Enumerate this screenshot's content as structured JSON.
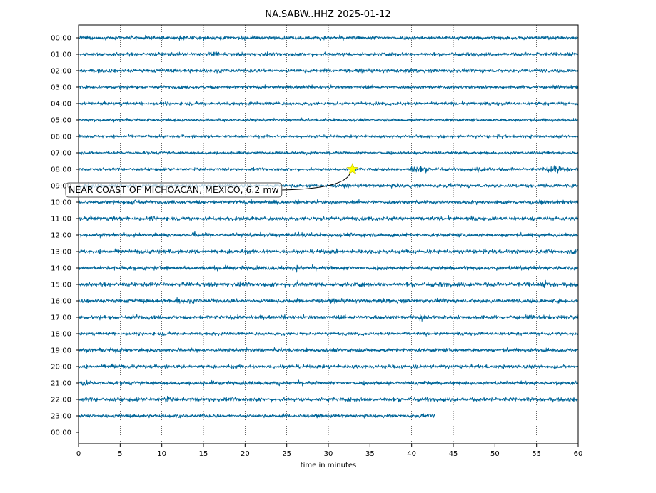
{
  "chart_data": {
    "type": "line",
    "title": "NA.SABW..HHZ 2025-01-12",
    "xlabel": "time in minutes",
    "ylabel": "",
    "xlim": [
      0,
      60
    ],
    "x_ticks": [
      0,
      5,
      10,
      15,
      20,
      25,
      30,
      35,
      40,
      45,
      50,
      55,
      60
    ],
    "grid": "vertical dotted lines at each x tick",
    "trace_color": "#006699",
    "rows": [
      {
        "label": "00:00",
        "end_minute": 60,
        "amplitude": 0.22
      },
      {
        "label": "01:00",
        "end_minute": 60,
        "amplitude": 0.22
      },
      {
        "label": "02:00",
        "end_minute": 60,
        "amplitude": 0.22
      },
      {
        "label": "03:00",
        "end_minute": 60,
        "amplitude": 0.2
      },
      {
        "label": "04:00",
        "end_minute": 60,
        "amplitude": 0.2
      },
      {
        "label": "05:00",
        "end_minute": 60,
        "amplitude": 0.18
      },
      {
        "label": "06:00",
        "end_minute": 60,
        "amplitude": 0.18
      },
      {
        "label": "07:00",
        "end_minute": 60,
        "amplitude": 0.18
      },
      {
        "label": "08:00",
        "end_minute": 60,
        "amplitude": 0.18
      },
      {
        "label": "09:00",
        "end_minute": 60,
        "amplitude": 0.22
      },
      {
        "label": "10:00",
        "end_minute": 60,
        "amplitude": 0.22
      },
      {
        "label": "11:00",
        "end_minute": 60,
        "amplitude": 0.24
      },
      {
        "label": "12:00",
        "end_minute": 60,
        "amplitude": 0.24
      },
      {
        "label": "13:00",
        "end_minute": 60,
        "amplitude": 0.24
      },
      {
        "label": "14:00",
        "end_minute": 60,
        "amplitude": 0.26
      },
      {
        "label": "15:00",
        "end_minute": 60,
        "amplitude": 0.26
      },
      {
        "label": "16:00",
        "end_minute": 60,
        "amplitude": 0.24
      },
      {
        "label": "17:00",
        "end_minute": 60,
        "amplitude": 0.24
      },
      {
        "label": "18:00",
        "end_minute": 60,
        "amplitude": 0.2
      },
      {
        "label": "19:00",
        "end_minute": 60,
        "amplitude": 0.22
      },
      {
        "label": "20:00",
        "end_minute": 60,
        "amplitude": 0.22
      },
      {
        "label": "21:00",
        "end_minute": 60,
        "amplitude": 0.24
      },
      {
        "label": "22:00",
        "end_minute": 60,
        "amplitude": 0.24
      },
      {
        "label": "23:00",
        "end_minute": 42.8,
        "amplitude": 0.2
      },
      {
        "label": "00:00",
        "end_minute": 0,
        "amplitude": 0
      }
    ],
    "bursts": [
      {
        "row": 0,
        "minute": 12.2,
        "width": 0.6,
        "strength": 1.2
      },
      {
        "row": 1,
        "minute": 16,
        "width": 0.8,
        "strength": 0.9
      },
      {
        "row": 3,
        "minute": 27,
        "width": 0.6,
        "strength": 0.8
      },
      {
        "row": 8,
        "minute": 40.1,
        "width": 3.0,
        "strength": 2.2
      },
      {
        "row": 8,
        "minute": 48,
        "width": 3.0,
        "strength": 1.1
      },
      {
        "row": 8,
        "minute": 56.5,
        "width": 3.2,
        "strength": 2.3
      },
      {
        "row": 9,
        "minute": 1,
        "width": 1.5,
        "strength": 0.9
      },
      {
        "row": 10,
        "minute": 6.5,
        "width": 0.8,
        "strength": 1.3
      },
      {
        "row": 12,
        "minute": 14,
        "width": 0.8,
        "strength": 1.2
      },
      {
        "row": 12,
        "minute": 26.5,
        "width": 0.8,
        "strength": 1.6
      },
      {
        "row": 12,
        "minute": 37.5,
        "width": 0.8,
        "strength": 1.3
      },
      {
        "row": 13,
        "minute": 59.3,
        "width": 0.6,
        "strength": 1.4
      },
      {
        "row": 14,
        "minute": 26,
        "width": 0.6,
        "strength": 1.2
      },
      {
        "row": 15,
        "minute": 26,
        "width": 0.6,
        "strength": 1.4
      },
      {
        "row": 15,
        "minute": 56,
        "width": 0.6,
        "strength": 1.2
      },
      {
        "row": 16,
        "minute": 11.8,
        "width": 0.6,
        "strength": 1.2
      },
      {
        "row": 17,
        "minute": 6.5,
        "width": 0.8,
        "strength": 1.3
      },
      {
        "row": 17,
        "minute": 41,
        "width": 0.8,
        "strength": 1.3
      },
      {
        "row": 19,
        "minute": 4.5,
        "width": 0.6,
        "strength": 1.2
      },
      {
        "row": 20,
        "minute": 4,
        "width": 0.8,
        "strength": 1.3
      },
      {
        "row": 21,
        "minute": 0.5,
        "width": 0.8,
        "strength": 1.2
      },
      {
        "row": 22,
        "minute": 10.3,
        "width": 0.6,
        "strength": 1.3
      },
      {
        "row": 22,
        "minute": 49.5,
        "width": 0.4,
        "strength": 1.3
      }
    ],
    "event": {
      "label": "NEAR COAST OF MICHOACAN, MEXICO, 6.2 mw",
      "row": 8,
      "minute": 32.9,
      "marker": "star",
      "marker_color": "#ffff00"
    }
  }
}
